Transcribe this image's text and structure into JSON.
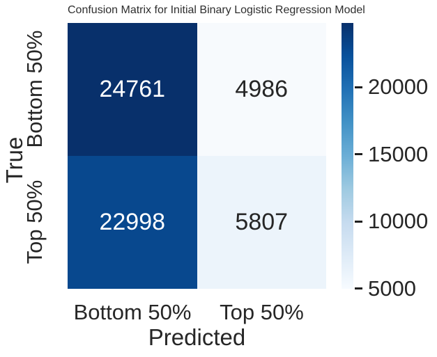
{
  "title": "Confusion Matrix for Initial Binary Logistic Regression Model",
  "axes": {
    "x_label": "Predicted",
    "y_label": "True",
    "x_ticks": [
      "Bottom 50%",
      "Top 50%"
    ],
    "y_ticks": [
      "Bottom 50%",
      "Top 50%"
    ]
  },
  "colorbar": {
    "tick_labels": [
      "20000",
      "15000",
      "10000",
      "5000"
    ]
  },
  "chart_data": {
    "type": "heatmap",
    "title": "Confusion Matrix for Initial Binary Logistic Regression Model",
    "xlabel": "Predicted",
    "ylabel": "True",
    "x_categories": [
      "Bottom 50%",
      "Top 50%"
    ],
    "y_categories": [
      "Bottom 50%",
      "Top 50%"
    ],
    "matrix": [
      [
        24761,
        4986
      ],
      [
        22998,
        5807
      ]
    ],
    "vmin": 4986,
    "vmax": 24761,
    "colormap": "Blues",
    "colorbar_ticks": [
      20000,
      15000,
      10000,
      5000
    ],
    "colorbar_position": "right",
    "grid": false,
    "cells": [
      {
        "row": 0,
        "col": 0,
        "value": "24761",
        "bg": "#08306b",
        "fg": "#ffffff"
      },
      {
        "row": 0,
        "col": 1,
        "value": "4986",
        "bg": "#f7fafd",
        "fg": "#262626"
      },
      {
        "row": 1,
        "col": 0,
        "value": "22998",
        "bg": "#08488e",
        "fg": "#ffffff"
      },
      {
        "row": 1,
        "col": 1,
        "value": "5807",
        "bg": "#ecf4fb",
        "fg": "#262626"
      }
    ],
    "colorbar_gradient": [
      "#08306b",
      "#08519c",
      "#2171b5",
      "#4292c6",
      "#6baed6",
      "#9ecae1",
      "#c6dbef",
      "#deebf7",
      "#f7fbff"
    ]
  }
}
